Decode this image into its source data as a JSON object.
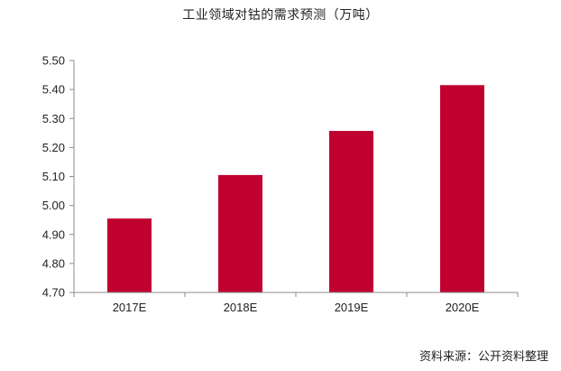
{
  "chart_data": {
    "type": "bar",
    "title": "工业领域对钴的需求预测（万吨）",
    "categories": [
      "2017E",
      "2018E",
      "2019E",
      "2020E"
    ],
    "values": [
      4.955,
      5.105,
      5.257,
      5.415
    ],
    "ylim": [
      4.7,
      5.5
    ],
    "yticks": [
      "4.70",
      "4.80",
      "4.90",
      "5.00",
      "5.10",
      "5.20",
      "5.30",
      "5.40",
      "5.50"
    ],
    "xlabel": "",
    "ylabel": "",
    "grid": false,
    "bar_color": "#C0002F",
    "source": "资料来源：公开资料整理"
  }
}
